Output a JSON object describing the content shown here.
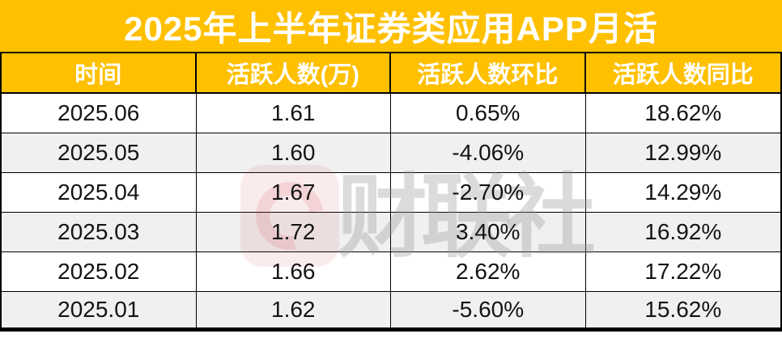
{
  "title": "2025年上半年证券类应用APP月活",
  "colors": {
    "accent": "#FFC000",
    "row_alt": "#F0F0F0",
    "border": "#000000",
    "title_text": "#FFFFFF",
    "body_text": "#141414",
    "watermark_red": "#CD414B",
    "watermark_gray": "#969696"
  },
  "watermark": {
    "text": "财联社",
    "logo": "cailian-press-logo"
  },
  "chart_data": {
    "type": "table",
    "title": "2025年上半年证券类应用APP月活",
    "columns": [
      "时间",
      "活跃人数(万)",
      "活跃人数环比",
      "活跃人数同比"
    ],
    "rows": [
      [
        "2025.06",
        "1.61",
        "0.65%",
        "18.62%"
      ],
      [
        "2025.05",
        "1.60",
        "-4.06%",
        "12.99%"
      ],
      [
        "2025.04",
        "1.67",
        "-2.70%",
        "14.29%"
      ],
      [
        "2025.03",
        "1.72",
        "3.40%",
        "16.92%"
      ],
      [
        "2025.02",
        "1.66",
        "2.62%",
        "17.22%"
      ],
      [
        "2025.01",
        "1.62",
        "-5.60%",
        "15.62%"
      ]
    ],
    "series": [
      {
        "name": "活跃人数(万)",
        "x": [
          "2025.06",
          "2025.05",
          "2025.04",
          "2025.03",
          "2025.02",
          "2025.01"
        ],
        "values": [
          1.61,
          1.6,
          1.67,
          1.72,
          1.66,
          1.62
        ]
      },
      {
        "name": "活跃人数环比(%)",
        "x": [
          "2025.06",
          "2025.05",
          "2025.04",
          "2025.03",
          "2025.02",
          "2025.01"
        ],
        "values": [
          0.65,
          -4.06,
          -2.7,
          3.4,
          2.62,
          -5.6
        ]
      },
      {
        "name": "活跃人数同比(%)",
        "x": [
          "2025.06",
          "2025.05",
          "2025.04",
          "2025.03",
          "2025.02",
          "2025.01"
        ],
        "values": [
          18.62,
          12.99,
          14.29,
          16.92,
          17.22,
          15.62
        ]
      }
    ]
  }
}
